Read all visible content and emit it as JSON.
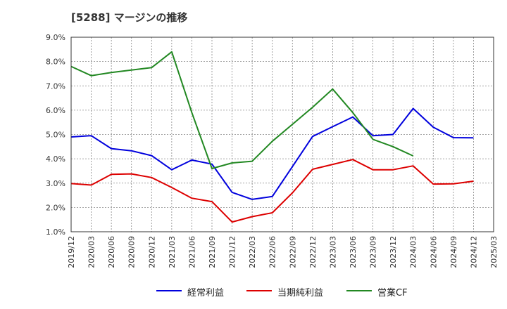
{
  "chart_data": {
    "type": "line",
    "title": "[5288]  マージンの推移",
    "xlabel": "",
    "ylabel": "",
    "categories": [
      "2019/12",
      "2020/03",
      "2020/06",
      "2020/09",
      "2020/12",
      "2021/03",
      "2021/06",
      "2021/09",
      "2021/12",
      "2022/03",
      "2022/06",
      "2022/09",
      "2022/12",
      "2023/03",
      "2023/06",
      "2023/09",
      "2023/12",
      "2024/03",
      "2024/06",
      "2024/09",
      "2024/12",
      "2025/03"
    ],
    "ylim": [
      1.0,
      9.0
    ],
    "yticks": [
      "1.0%",
      "2.0%",
      "3.0%",
      "4.0%",
      "5.0%",
      "6.0%",
      "7.0%",
      "8.0%",
      "9.0%"
    ],
    "grid": true,
    "legend_position": "bottom",
    "series": [
      {
        "name": "経常利益",
        "color": "#0000dd",
        "values": [
          4.9,
          4.95,
          4.42,
          4.33,
          4.13,
          3.55,
          3.95,
          3.78,
          2.62,
          2.33,
          2.45,
          3.68,
          4.92,
          5.32,
          5.72,
          4.95,
          5.0,
          6.07,
          5.3,
          4.87,
          4.86,
          null
        ]
      },
      {
        "name": "当期純利益",
        "color": "#dd0000",
        "values": [
          2.98,
          2.92,
          3.36,
          3.38,
          3.23,
          2.82,
          2.38,
          2.24,
          1.4,
          1.62,
          1.78,
          2.6,
          3.57,
          3.77,
          3.97,
          3.55,
          3.55,
          3.71,
          2.96,
          2.97,
          3.08,
          null
        ]
      },
      {
        "name": "営業CF",
        "color": "#228822",
        "values": [
          7.8,
          7.42,
          7.55,
          7.65,
          7.75,
          8.4,
          5.9,
          3.6,
          3.83,
          3.9,
          4.72,
          5.42,
          6.12,
          6.87,
          5.9,
          4.8,
          4.5,
          4.12,
          null,
          null,
          null,
          null
        ]
      }
    ]
  }
}
